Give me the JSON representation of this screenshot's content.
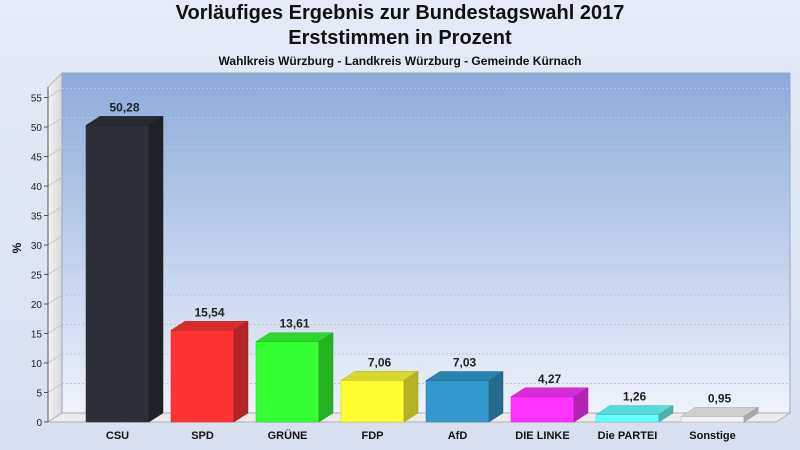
{
  "chart_data": {
    "type": "bar",
    "title": "Vorläufiges Ergebnis zur Bundestagswahl 2017",
    "subtitle": "Erststimmen in Prozent",
    "subsubtitle": "Wahlkreis Würzburg - Landkreis Würzburg - Gemeinde Kürnach",
    "ylabel": "%",
    "ylim": [
      0,
      55
    ],
    "yticks": [
      "0",
      "5",
      "10",
      "15",
      "20",
      "25",
      "30",
      "35",
      "40",
      "45",
      "50",
      "55"
    ],
    "categories": [
      "CSU",
      "SPD",
      "GRÜNE",
      "FDP",
      "AfD",
      "DIE LINKE",
      "Die PARTEI",
      "Sonstige"
    ],
    "values": [
      50.28,
      15.54,
      13.61,
      7.06,
      7.03,
      4.27,
      1.26,
      0.95
    ],
    "value_labels": [
      "50,28",
      "15,54",
      "13,61",
      "7,06",
      "7,03",
      "4,27",
      "1,26",
      "0,95"
    ],
    "colors": [
      "#2d3038",
      "#ff3333",
      "#33ff33",
      "#ffff33",
      "#3399cc",
      "#ff33ff",
      "#66ffff",
      "#f2f2f2"
    ],
    "grid": true
  }
}
